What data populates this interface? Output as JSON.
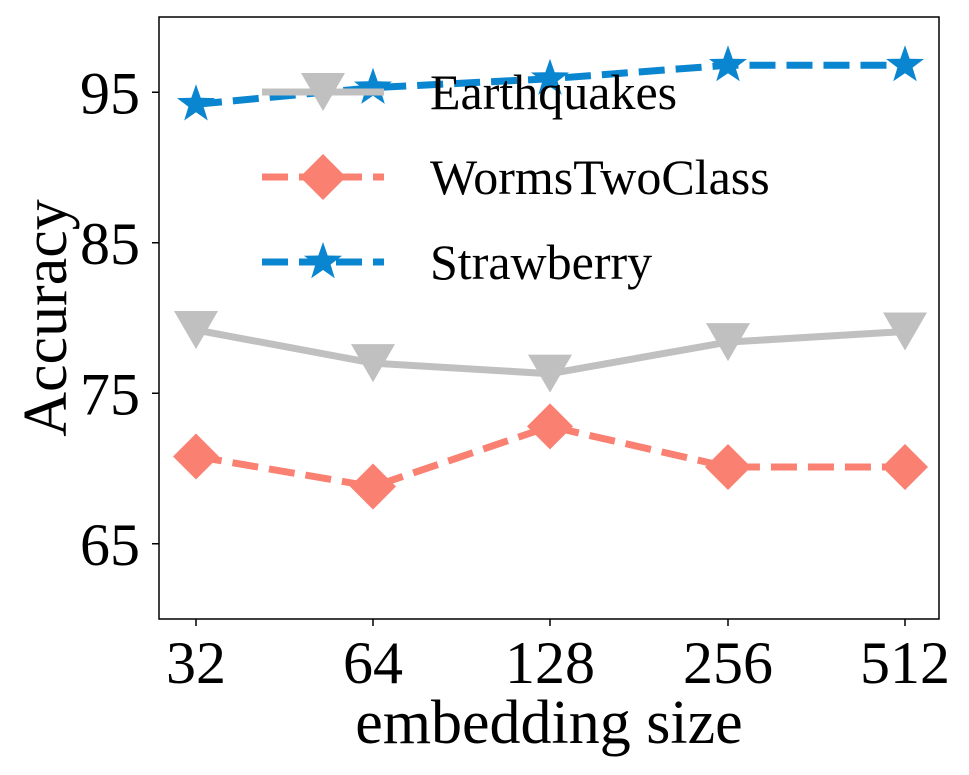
{
  "chart_data": {
    "type": "line",
    "title": "",
    "xlabel": "embedding size",
    "ylabel": "Accuracy",
    "categories": [
      "32",
      "64",
      "128",
      "256",
      "512"
    ],
    "yticks": [
      65,
      75,
      85,
      95
    ],
    "ylim": [
      60,
      100
    ],
    "grid": false,
    "legend_position": "upper-center",
    "series": [
      {
        "name": "Earthquakes",
        "values": [
          79.2,
          77.0,
          76.3,
          78.4,
          79.1
        ],
        "color": "#c0c0c0",
        "linestyle": "solid",
        "marker": "triangle-down"
      },
      {
        "name": "WormsTwoClass",
        "values": [
          70.8,
          68.8,
          72.8,
          70.1,
          70.1
        ],
        "color": "#fa8072",
        "linestyle": "dashed",
        "marker": "diamond"
      },
      {
        "name": "Strawberry",
        "values": [
          94.2,
          95.3,
          95.9,
          96.8,
          96.8
        ],
        "color": "#0a85d0",
        "linestyle": "dashed",
        "marker": "star"
      }
    ]
  }
}
